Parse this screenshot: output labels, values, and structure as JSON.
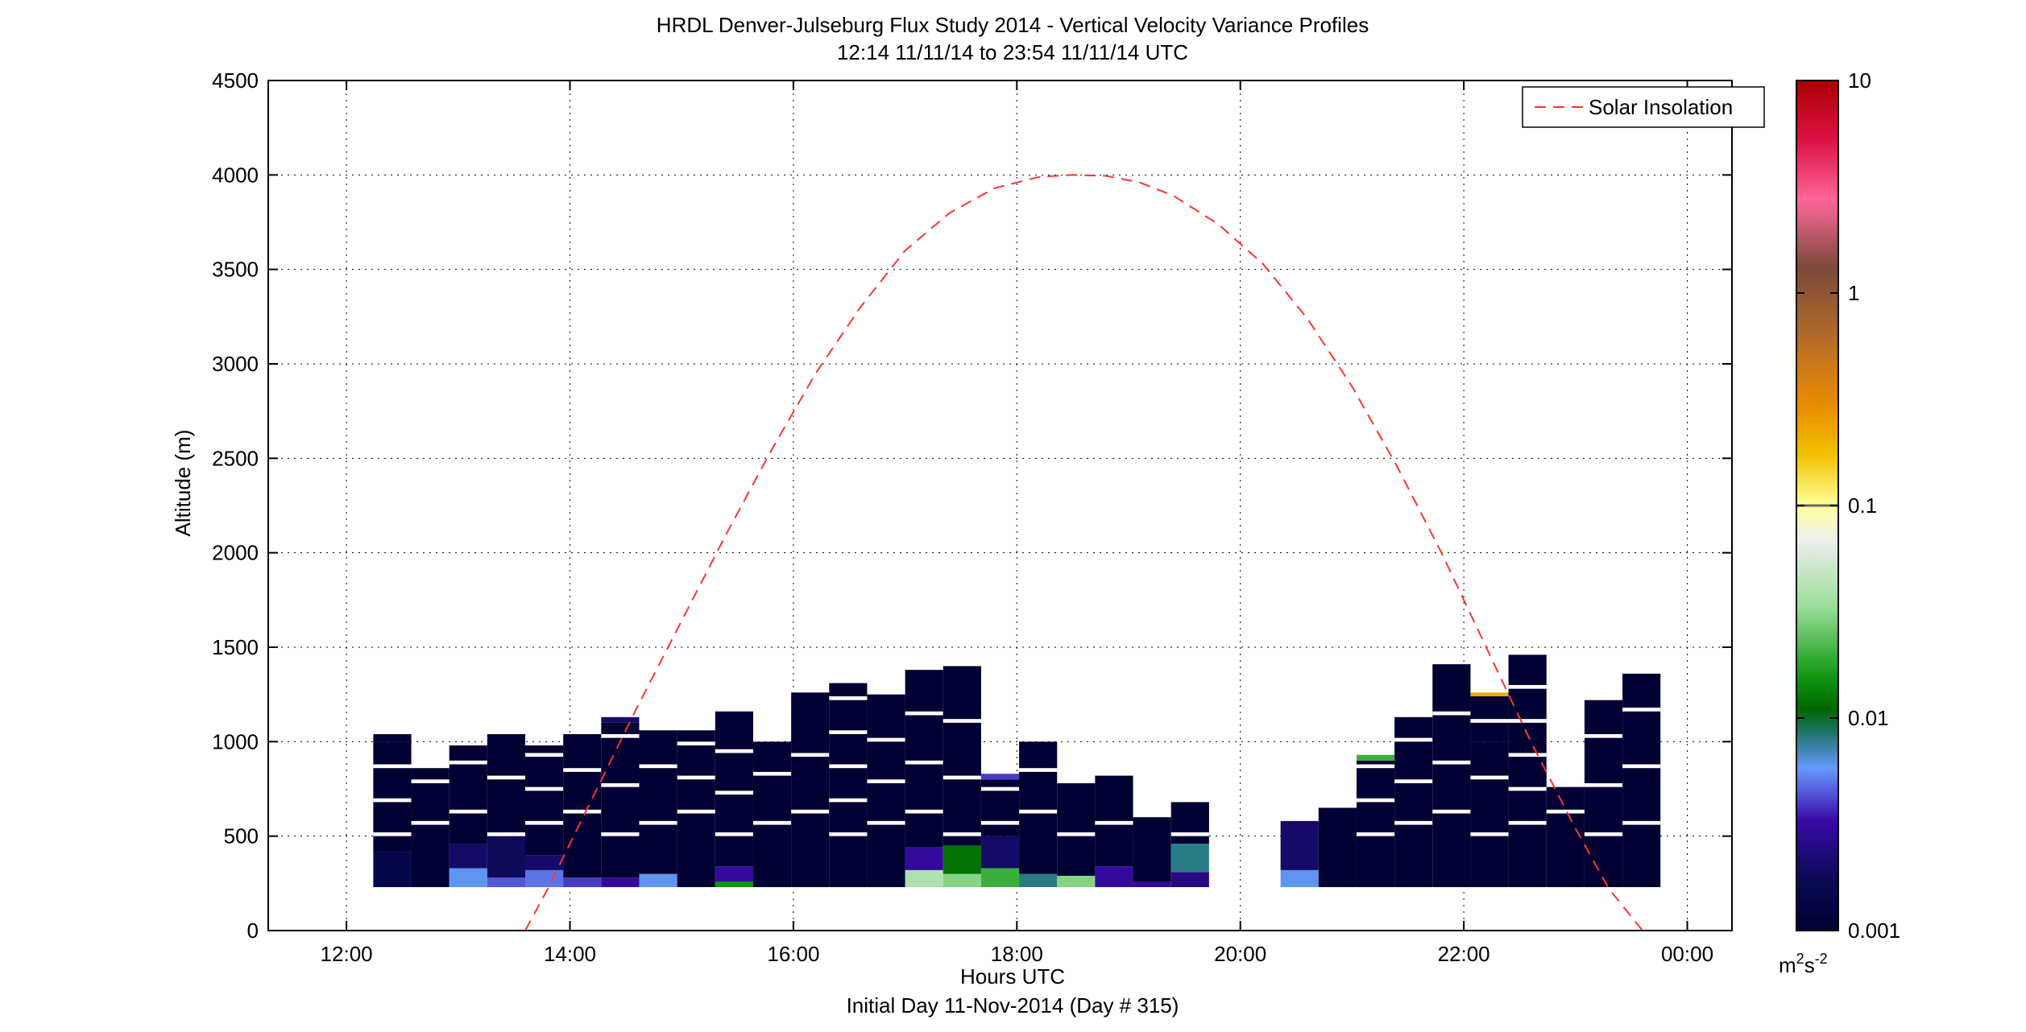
{
  "chart_data": {
    "type": "heatmap",
    "title": "HRDL Denver-Julseburg Flux Study 2014 - Vertical Velocity Variance Profiles",
    "subtitle": "12:14 11/11/14 to 23:54 11/11/14  UTC",
    "xlabel": "Hours UTC",
    "xlabel2": "Initial Day 11-Nov-2014 (Day # 315)",
    "ylabel": "Altitude (m)",
    "xlim": [
      11.3,
      24.4
    ],
    "ylim": [
      0,
      4500
    ],
    "x_ticks": [
      12,
      14,
      16,
      18,
      20,
      22,
      24
    ],
    "x_tick_labels": [
      "12:00",
      "14:00",
      "16:00",
      "18:00",
      "20:00",
      "22:00",
      "00:00"
    ],
    "y_ticks": [
      0,
      500,
      1000,
      1500,
      2000,
      2500,
      3000,
      3500,
      4000,
      4500
    ],
    "y_tick_labels": [
      "0",
      "500",
      "1000",
      "1500",
      "2000",
      "2500",
      "3000",
      "3500",
      "4000",
      "4500"
    ],
    "grid": true,
    "legend": {
      "position": "top-right",
      "entries": [
        {
          "label": "Solar Insolation",
          "color": "#ff3333",
          "style": "dashed"
        }
      ]
    },
    "colorbar": {
      "scale": "log",
      "range": [
        0.001,
        10
      ],
      "ticks": [
        0.001,
        0.01,
        0.1,
        1,
        10
      ],
      "tick_labels": [
        "0.001",
        "0.01",
        "0.1",
        "1",
        "10"
      ],
      "units_base": "m",
      "units_exp1": "2",
      "units_mid": "s",
      "units_exp2": "-2"
    },
    "solar_insolation": {
      "x": [
        13.6,
        13.8,
        14.0,
        14.3,
        14.6,
        15.0,
        15.4,
        15.8,
        16.2,
        16.6,
        17.0,
        17.4,
        17.8,
        18.2,
        18.5,
        18.8,
        19.1,
        19.4,
        19.8,
        20.2,
        20.6,
        21.0,
        21.4,
        21.8,
        22.2,
        22.6,
        23.0,
        23.3,
        23.6,
        23.8
      ],
      "y": [
        0,
        220,
        460,
        820,
        1180,
        1640,
        2100,
        2540,
        2950,
        3300,
        3600,
        3800,
        3930,
        3990,
        4000,
        3995,
        3960,
        3890,
        3740,
        3530,
        3240,
        2880,
        2460,
        2000,
        1500,
        1000,
        540,
        220,
        0,
        -150
      ]
    },
    "profiles": [
      {
        "t0": 12.24,
        "t1": 12.58,
        "bins": [
          [
            230,
            420,
            0.0015
          ],
          [
            420,
            1000,
            0.001
          ],
          [
            1000,
            1040,
            0.001
          ]
        ]
      },
      {
        "t0": 12.58,
        "t1": 12.92,
        "bins": [
          [
            230,
            860,
            0.001
          ]
        ]
      },
      {
        "t0": 12.92,
        "t1": 13.26,
        "bins": [
          [
            230,
            330,
            0.006
          ],
          [
            330,
            460,
            0.002
          ],
          [
            460,
            980,
            0.001
          ]
        ]
      },
      {
        "t0": 13.26,
        "t1": 13.6,
        "bins": [
          [
            230,
            280,
            0.0045
          ],
          [
            280,
            500,
            0.0018
          ],
          [
            500,
            1040,
            0.001
          ]
        ]
      },
      {
        "t0": 13.6,
        "t1": 13.94,
        "bins": [
          [
            230,
            320,
            0.005
          ],
          [
            320,
            400,
            0.002
          ],
          [
            400,
            980,
            0.001
          ]
        ]
      },
      {
        "t0": 13.94,
        "t1": 14.28,
        "bins": [
          [
            230,
            280,
            0.004
          ],
          [
            280,
            1040,
            0.001
          ]
        ]
      },
      {
        "t0": 14.28,
        "t1": 14.62,
        "bins": [
          [
            230,
            280,
            0.003
          ],
          [
            280,
            1100,
            0.001
          ],
          [
            1100,
            1130,
            0.002
          ]
        ]
      },
      {
        "t0": 14.62,
        "t1": 14.96,
        "bins": [
          [
            230,
            300,
            0.006
          ],
          [
            300,
            1060,
            0.001
          ]
        ]
      },
      {
        "t0": 14.96,
        "t1": 15.3,
        "bins": [
          [
            230,
            1060,
            0.001
          ]
        ]
      },
      {
        "t0": 15.3,
        "t1": 15.64,
        "bins": [
          [
            230,
            260,
            0.015
          ],
          [
            260,
            340,
            0.003
          ],
          [
            340,
            1160,
            0.001
          ]
        ]
      },
      {
        "t0": 15.64,
        "t1": 15.98,
        "bins": [
          [
            230,
            1000,
            0.001
          ]
        ]
      },
      {
        "t0": 15.98,
        "t1": 16.32,
        "bins": [
          [
            230,
            1260,
            0.001
          ]
        ]
      },
      {
        "t0": 16.32,
        "t1": 16.66,
        "bins": [
          [
            230,
            1310,
            0.001
          ]
        ]
      },
      {
        "t0": 16.66,
        "t1": 17.0,
        "bins": [
          [
            230,
            1250,
            0.001
          ]
        ]
      },
      {
        "t0": 17.0,
        "t1": 17.34,
        "bins": [
          [
            230,
            320,
            0.04
          ],
          [
            320,
            440,
            0.003
          ],
          [
            440,
            1380,
            0.001
          ]
        ]
      },
      {
        "t0": 17.34,
        "t1": 17.68,
        "bins": [
          [
            230,
            300,
            0.03
          ],
          [
            300,
            450,
            0.012
          ],
          [
            450,
            1400,
            0.001
          ]
        ]
      },
      {
        "t0": 17.68,
        "t1": 18.02,
        "bins": [
          [
            230,
            330,
            0.02
          ],
          [
            330,
            500,
            0.002
          ],
          [
            500,
            800,
            0.001
          ],
          [
            800,
            830,
            0.004
          ]
        ]
      },
      {
        "t0": 18.02,
        "t1": 18.36,
        "bins": [
          [
            230,
            300,
            0.008
          ],
          [
            300,
            1000,
            0.001
          ]
        ]
      },
      {
        "t0": 18.36,
        "t1": 18.7,
        "bins": [
          [
            230,
            290,
            0.03
          ],
          [
            290,
            780,
            0.001
          ]
        ]
      },
      {
        "t0": 18.7,
        "t1": 19.04,
        "bins": [
          [
            230,
            340,
            0.003
          ],
          [
            340,
            820,
            0.001
          ]
        ]
      },
      {
        "t0": 19.04,
        "t1": 19.38,
        "bins": [
          [
            230,
            260,
            0.003
          ],
          [
            260,
            600,
            0.001
          ]
        ]
      },
      {
        "t0": 19.38,
        "t1": 19.72,
        "bins": [
          [
            230,
            310,
            0.0025
          ],
          [
            310,
            460,
            0.008
          ],
          [
            460,
            680,
            0.001
          ]
        ]
      },
      {
        "t0": 20.36,
        "t1": 20.7,
        "bins": [
          [
            230,
            320,
            0.006
          ],
          [
            320,
            580,
            0.002
          ]
        ]
      },
      {
        "t0": 20.7,
        "t1": 21.04,
        "bins": [
          [
            230,
            650,
            0.001
          ]
        ]
      },
      {
        "t0": 21.04,
        "t1": 21.38,
        "bins": [
          [
            230,
            900,
            0.001
          ],
          [
            900,
            930,
            0.02
          ]
        ]
      },
      {
        "t0": 21.38,
        "t1": 21.72,
        "bins": [
          [
            230,
            1130,
            0.001
          ]
        ]
      },
      {
        "t0": 21.72,
        "t1": 22.06,
        "bins": [
          [
            230,
            1410,
            0.001
          ]
        ]
      },
      {
        "t0": 22.06,
        "t1": 22.4,
        "bins": [
          [
            230,
            1000,
            0.001
          ],
          [
            1000,
            1240,
            0.001
          ],
          [
            1240,
            1260,
            0.22
          ]
        ]
      },
      {
        "t0": 22.4,
        "t1": 22.74,
        "bins": [
          [
            230,
            1460,
            0.001
          ]
        ]
      },
      {
        "t0": 22.74,
        "t1": 23.08,
        "bins": [
          [
            230,
            760,
            0.001
          ]
        ]
      },
      {
        "t0": 23.08,
        "t1": 23.42,
        "bins": [
          [
            230,
            1220,
            0.001
          ]
        ]
      },
      {
        "t0": 23.42,
        "t1": 23.76,
        "bins": [
          [
            230,
            1360,
            0.001
          ]
        ]
      }
    ]
  }
}
